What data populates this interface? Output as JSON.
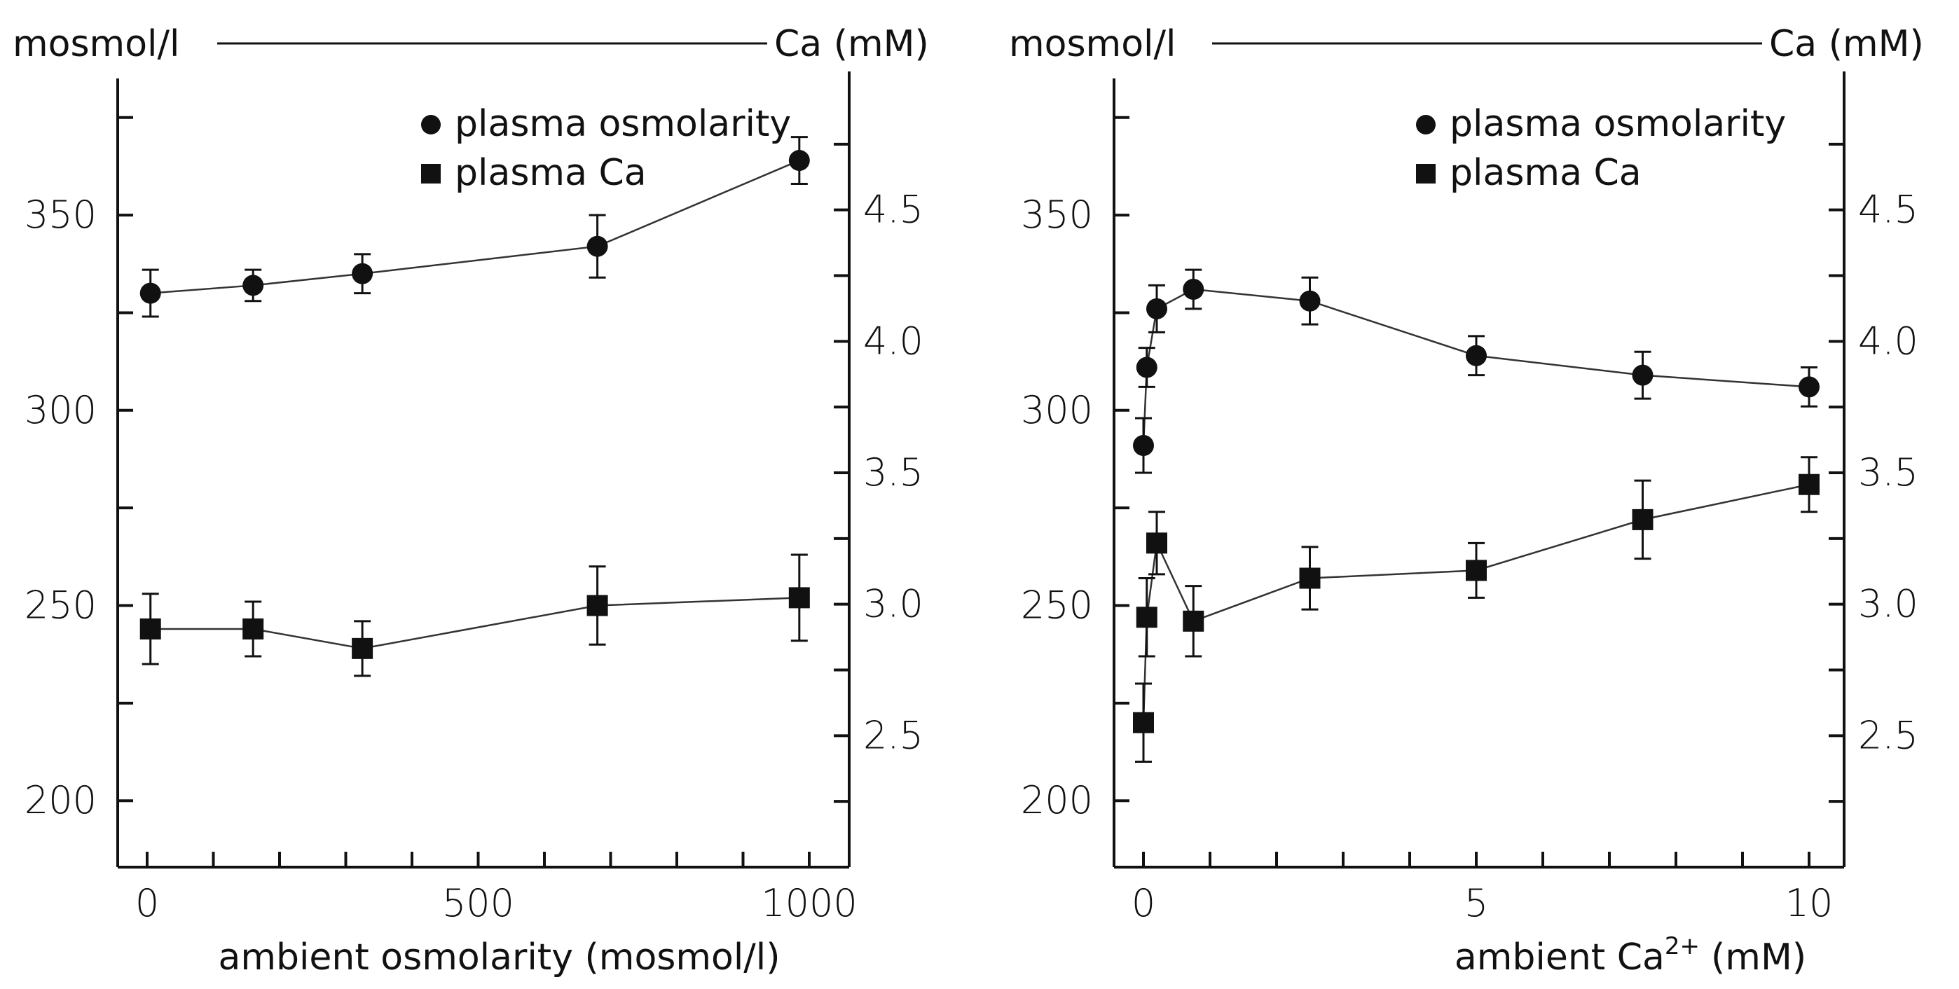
{
  "chart_data": [
    {
      "type": "line",
      "xlabel": "ambient  osmolarity (mosmol/l)",
      "left_unit": "mosmol/l",
      "right_unit": "Ca (mM)",
      "xlim": [
        0,
        1000
      ],
      "x_ticks": [
        0,
        500,
        1000
      ],
      "x_minor_ticks": [
        100,
        200,
        300,
        400,
        600,
        700,
        800,
        900
      ],
      "y_left_lim": [
        183,
        385
      ],
      "y_left_ticks": [
        200,
        250,
        300,
        350
      ],
      "y_left_minor_ticks": [
        225,
        275,
        325,
        375
      ],
      "y_right_lim": [
        2.0,
        5.0
      ],
      "y_right_ticks": [
        "2.5",
        "3.0",
        "3.5",
        "4.0",
        "4.5"
      ],
      "y_right_tick_values": [
        2.5,
        3.0,
        3.5,
        4.0,
        4.5
      ],
      "y_right_minor_ticks": [
        2.25,
        2.75,
        3.25,
        3.75,
        4.25,
        4.75
      ],
      "legend_position": "top-right",
      "series": [
        {
          "name": "plasma osmolarity",
          "marker": "circle",
          "axis": "left",
          "x": [
            5,
            160,
            325,
            680,
            985
          ],
          "y": [
            330,
            332,
            335,
            342,
            364
          ],
          "err": [
            6,
            4,
            5,
            8,
            6
          ]
        },
        {
          "name": "plasma Ca",
          "marker": "square",
          "axis": "left",
          "x": [
            5,
            160,
            325,
            680,
            985
          ],
          "y": [
            244,
            244,
            239,
            250,
            252
          ],
          "err": [
            9,
            7,
            7,
            10,
            11
          ]
        }
      ]
    },
    {
      "type": "line",
      "xlabel": "ambient  Ca",
      "xlabel_superscript": "2+",
      "xlabel_unit": "(mM)",
      "left_unit": "mosmol/l",
      "right_unit": "Ca (mM)",
      "xlim": [
        -0.3,
        10.3
      ],
      "x_ticks": [
        0,
        5,
        10
      ],
      "x_minor_ticks": [
        1,
        2,
        3,
        4,
        6,
        7,
        8,
        9
      ],
      "y_left_lim": [
        183,
        385
      ],
      "y_left_ticks": [
        200,
        250,
        300,
        350
      ],
      "y_left_minor_ticks": [
        225,
        275,
        325,
        375
      ],
      "y_right_lim": [
        2.0,
        5.0
      ],
      "y_right_ticks": [
        "2.5",
        "3.0",
        "3.5",
        "4.0",
        "4.5"
      ],
      "y_right_tick_values": [
        2.5,
        3.0,
        3.5,
        4.0,
        4.5
      ],
      "y_right_minor_ticks": [
        2.25,
        2.75,
        3.25,
        3.75,
        4.25,
        4.75
      ],
      "legend_position": "top-right",
      "series": [
        {
          "name": "plasma osmolarity",
          "marker": "circle",
          "axis": "left",
          "x": [
            0.0,
            0.05,
            0.2,
            0.75,
            2.5,
            5.0,
            7.5,
            10.0
          ],
          "y": [
            291,
            311,
            326,
            331,
            328,
            314,
            309,
            306
          ],
          "err": [
            7,
            5,
            6,
            5,
            6,
            5,
            6,
            5
          ]
        },
        {
          "name": "plasma Ca",
          "marker": "square",
          "axis": "left",
          "x": [
            0.0,
            0.05,
            0.2,
            0.75,
            2.5,
            5.0,
            7.5,
            10.0
          ],
          "y": [
            220,
            247,
            266,
            246,
            257,
            259,
            272,
            281
          ],
          "err": [
            10,
            10,
            8,
            9,
            8,
            7,
            10,
            7
          ]
        }
      ]
    }
  ]
}
